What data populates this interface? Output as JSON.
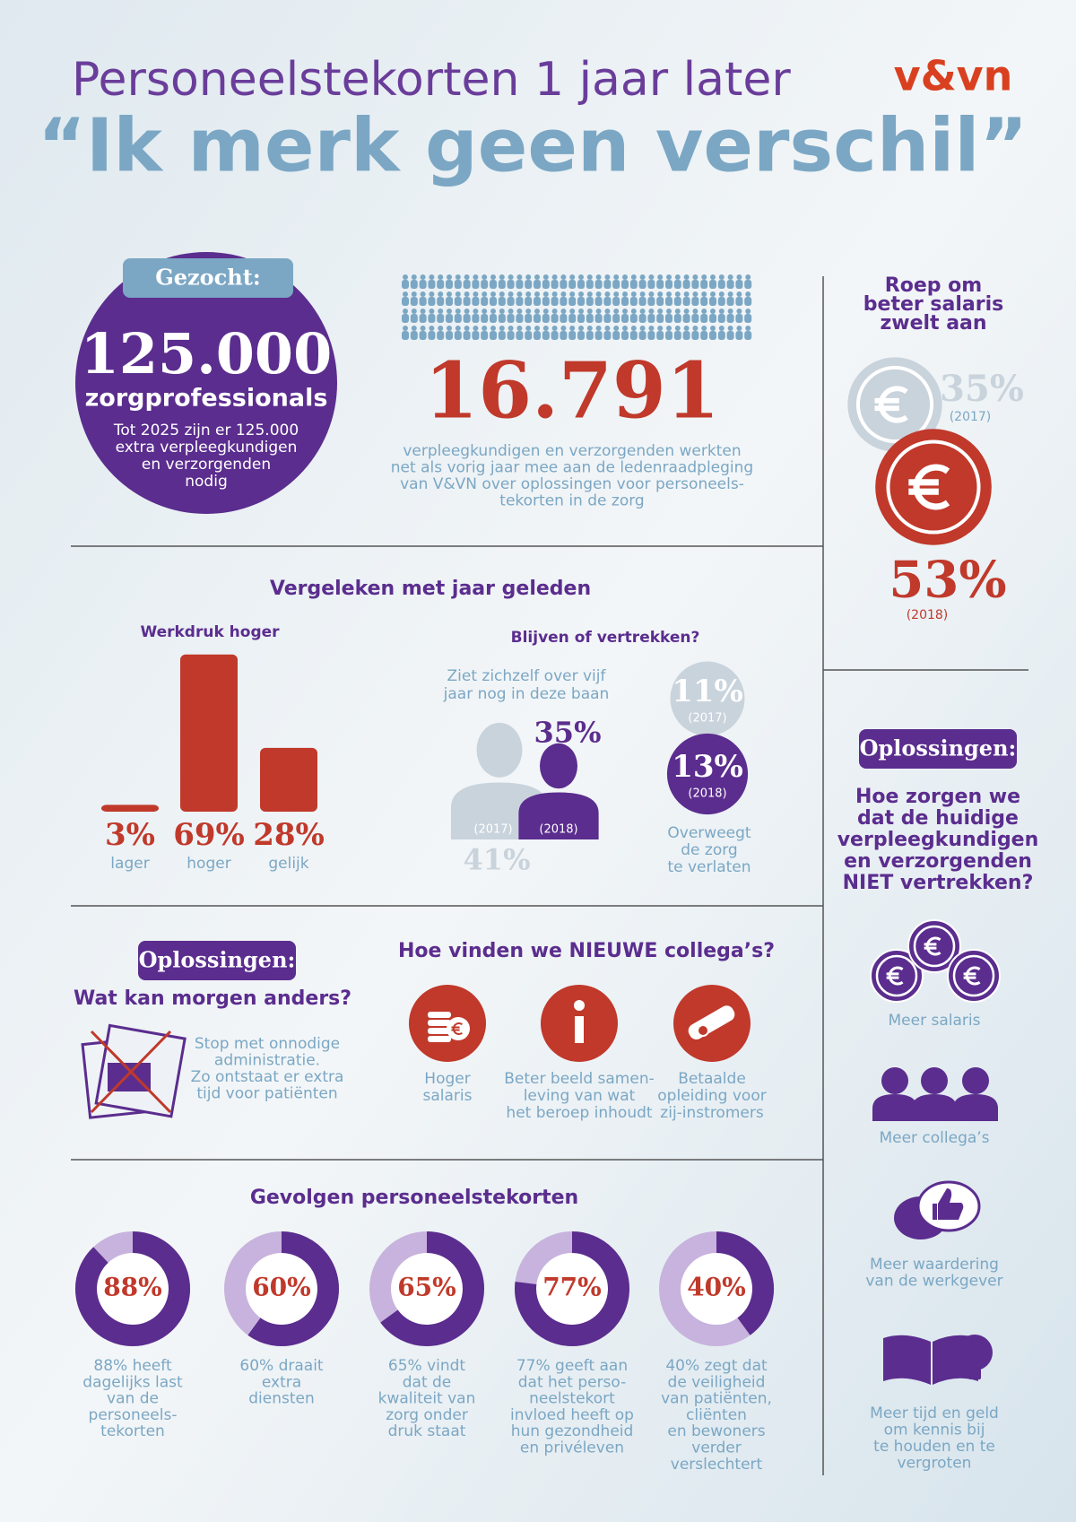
{
  "header": {
    "title": "Personeelstekorten 1 jaar later",
    "subtitle": "“Ik merk geen verschil”",
    "logo": "v&vn"
  },
  "sought": {
    "badge": "Gezocht:",
    "number": "125.000",
    "unit": "zorgprofessionals",
    "text": [
      "Tot 2025 zijn er 125.000",
      "extra verpleegkundigen",
      "en verzorgenden",
      "nodig"
    ]
  },
  "participants": {
    "number": "16.791",
    "text": [
      "verpleegkundigen en verzorgenden werkten",
      "net als vorig jaar mee aan de ledenraadpleging",
      "van V&VN over oplossingen voor personeels-",
      "tekorten in de zorg"
    ]
  },
  "salary": {
    "title": [
      "Roep om",
      "beter salaris",
      "zwelt aan"
    ],
    "values": [
      35,
      53
    ],
    "value_labels": [
      "35%",
      "53%"
    ],
    "years": [
      "(2017)",
      "(2018)"
    ]
  },
  "comparison": {
    "title": "Vergeleken met jaar geleden",
    "workload": {
      "type": "bar",
      "title": "Werkdruk hoger",
      "categories": [
        "lager",
        "hoger",
        "gelijk"
      ],
      "values": [
        3,
        69,
        28
      ],
      "value_labels": [
        "3%",
        "69%",
        "28%"
      ],
      "color": "#c0392b"
    },
    "stay": {
      "title": "Blijven of vertrekken?",
      "see_self": {
        "text": [
          "Ziet zichzelf over vijf",
          "jaar nog in deze baan"
        ],
        "values": [
          41,
          35
        ],
        "value_labels": [
          "41%",
          "35%"
        ],
        "years": [
          "(2017)",
          "(2018)"
        ]
      },
      "consider_leaving": {
        "values": [
          11,
          13
        ],
        "value_labels": [
          "11%",
          "13%"
        ],
        "years": [
          "(2017)",
          "(2018)"
        ],
        "text": [
          "Overweegt",
          "de zorg",
          "te verlaten"
        ]
      }
    }
  },
  "tomorrow": {
    "badge": "Oplossingen:",
    "title": "Wat kan morgen anders?",
    "text": [
      "Stop met onnodige",
      "administratie.",
      "Zo ontstaat er extra",
      "tijd voor patiënten"
    ]
  },
  "new_colleagues": {
    "title": "Hoe vinden we NIEUWE collega’s?",
    "items": [
      [
        "Hoger",
        "salaris"
      ],
      [
        "Beter beeld samen-",
        "leving van wat",
        "het beroep inhoudt"
      ],
      [
        "Betaalde",
        "opleiding voor",
        "zij-instromers"
      ]
    ]
  },
  "consequences": {
    "title": "Gevolgen personeelstekorten",
    "values": [
      88,
      60,
      65,
      77,
      40
    ],
    "value_labels": [
      "88%",
      "60%",
      "65%",
      "77%",
      "40%"
    ],
    "texts": [
      [
        "88% heeft",
        "dagelijks last",
        "van de",
        "personeels-",
        "tekorten"
      ],
      [
        "60% draait",
        "extra",
        "diensten"
      ],
      [
        "65% vindt",
        "dat de",
        "kwaliteit van",
        "zorg onder",
        "druk staat"
      ],
      [
        "77% geeft aan",
        "dat het perso-",
        "neelstekort",
        "invloed heeft op",
        "hun gezondheid",
        "en privéleven"
      ],
      [
        "40% zegt dat",
        "de veiligheid",
        "van patiënten,",
        "cliënten",
        "en bewoners",
        "verder",
        "verslechtert"
      ]
    ]
  },
  "retain": {
    "badge": "Oplossingen:",
    "question": [
      "Hoe zorgen we",
      "dat de huidige",
      "verpleegkundigen",
      "en verzorgenden",
      "NIET vertrekken?"
    ],
    "items": [
      [
        "Meer salaris"
      ],
      [
        "Meer collega’s"
      ],
      [
        "Meer waardering",
        "van de werkgever"
      ],
      [
        "Meer tijd en geld",
        "om kennis bij",
        "te houden en te",
        "vergroten"
      ]
    ]
  }
}
